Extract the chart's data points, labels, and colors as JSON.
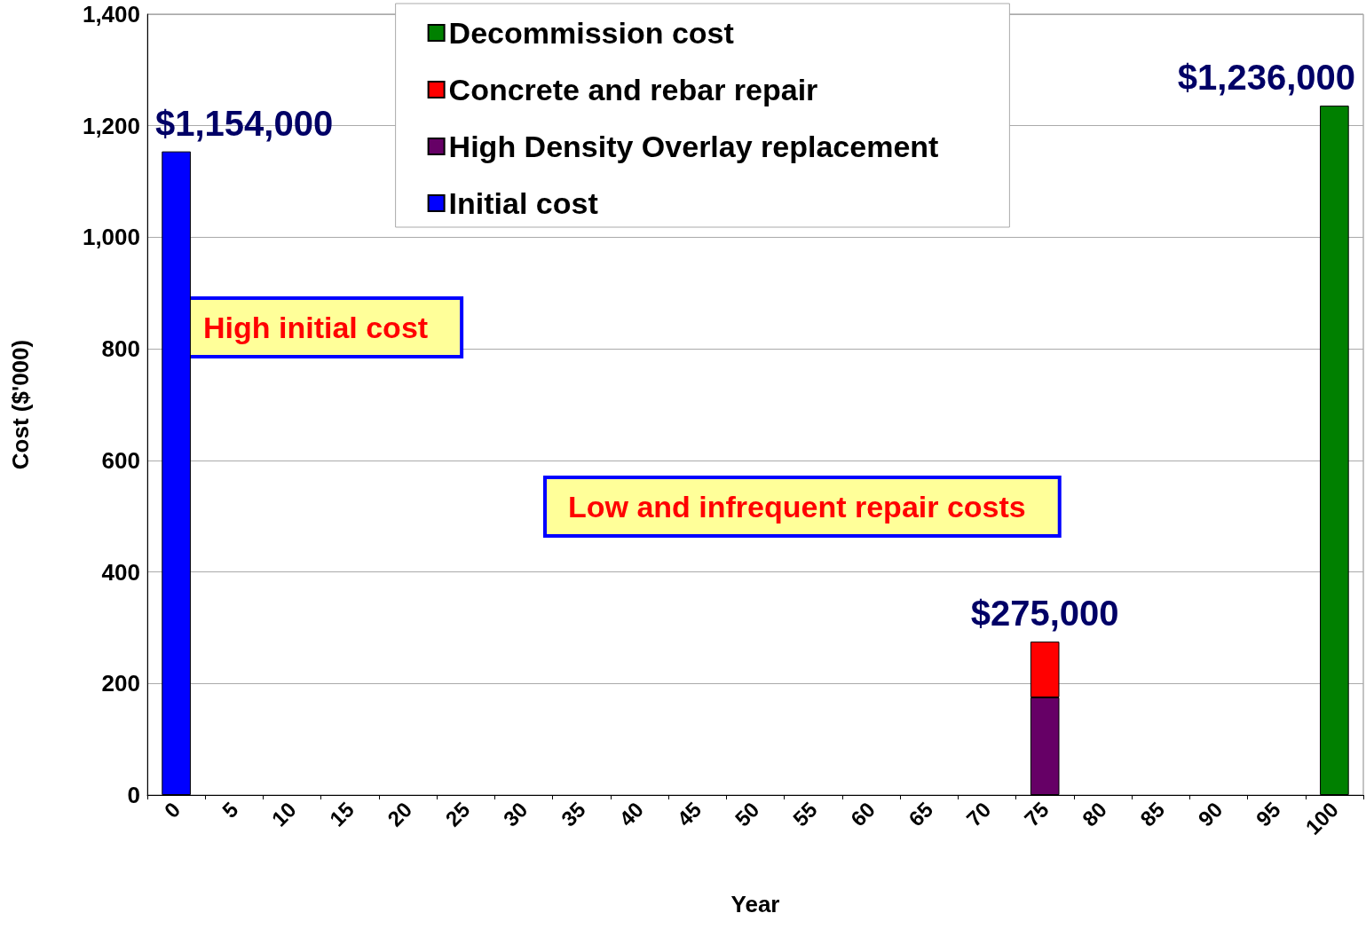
{
  "chart_data": {
    "type": "bar",
    "stacked": true,
    "xlabel": "Year",
    "ylabel": "Cost ($'000)",
    "categories": [
      "0",
      "5",
      "10",
      "15",
      "20",
      "25",
      "30",
      "35",
      "40",
      "45",
      "50",
      "55",
      "60",
      "65",
      "70",
      "75",
      "80",
      "85",
      "90",
      "95",
      "100"
    ],
    "series": [
      {
        "name": "Initial cost",
        "color": "#0000ff",
        "values": [
          1154,
          null,
          null,
          null,
          null,
          null,
          null,
          null,
          null,
          null,
          null,
          null,
          null,
          null,
          null,
          null,
          null,
          null,
          null,
          null,
          null
        ]
      },
      {
        "name": "High Density Overlay replacement",
        "color": "#660066",
        "values": [
          null,
          null,
          null,
          null,
          null,
          null,
          null,
          null,
          null,
          null,
          null,
          null,
          null,
          null,
          null,
          175,
          null,
          null,
          null,
          null,
          null
        ]
      },
      {
        "name": "Concrete and rebar repair",
        "color": "#ff0000",
        "values": [
          null,
          null,
          null,
          null,
          null,
          null,
          null,
          null,
          null,
          null,
          null,
          null,
          null,
          null,
          null,
          100,
          null,
          null,
          null,
          null,
          null
        ]
      },
      {
        "name": "Decommission cost",
        "color": "#008000",
        "values": [
          null,
          null,
          null,
          null,
          null,
          null,
          null,
          null,
          null,
          null,
          null,
          null,
          null,
          null,
          null,
          null,
          null,
          null,
          null,
          null,
          1236
        ]
      }
    ],
    "ylim": [
      0,
      1400
    ],
    "yticks": [
      0,
      200,
      400,
      600,
      800,
      {
        "value": 1000,
        "label": "1,000"
      },
      {
        "value": 1200,
        "label": "1,200"
      },
      {
        "value": 1400,
        "label": "1,400"
      }
    ],
    "grid": "y",
    "legend": "top",
    "annotations": [
      {
        "text": "$1,154,000",
        "x": "0",
        "y": 1154
      },
      {
        "text": "$275,000",
        "x": "75",
        "y": 275
      },
      {
        "text": "$1,236,000",
        "x": "100",
        "y": 1236
      },
      "High initial cost",
      "Low and infrequent repair costs"
    ]
  }
}
